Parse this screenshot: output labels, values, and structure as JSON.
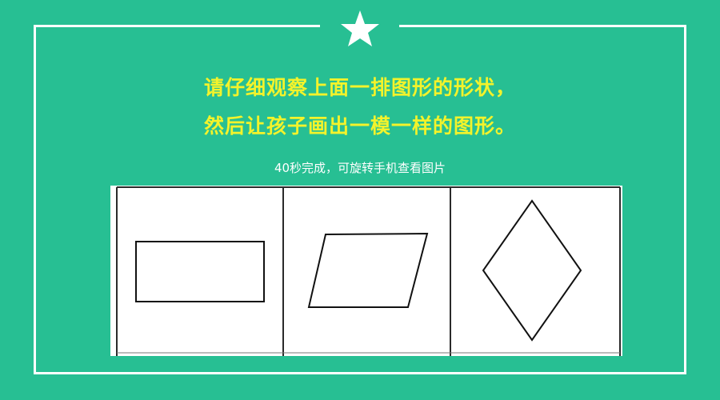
{
  "title": {
    "line1": "请仔细观察上面一排图形的形状，",
    "line2": "然后让孩子画出一模一样的图形。"
  },
  "subtitle": "40秒完成，可旋转手机查看图片",
  "icons": {
    "top_badge": "star-icon"
  },
  "colors": {
    "background": "#27bf93",
    "title": "#f3f32b",
    "subtitle": "#ffffff",
    "frame": "#ffffff",
    "figure_stroke": "#111111"
  },
  "shapes": [
    "rectangle",
    "parallelogram",
    "rhombus"
  ]
}
